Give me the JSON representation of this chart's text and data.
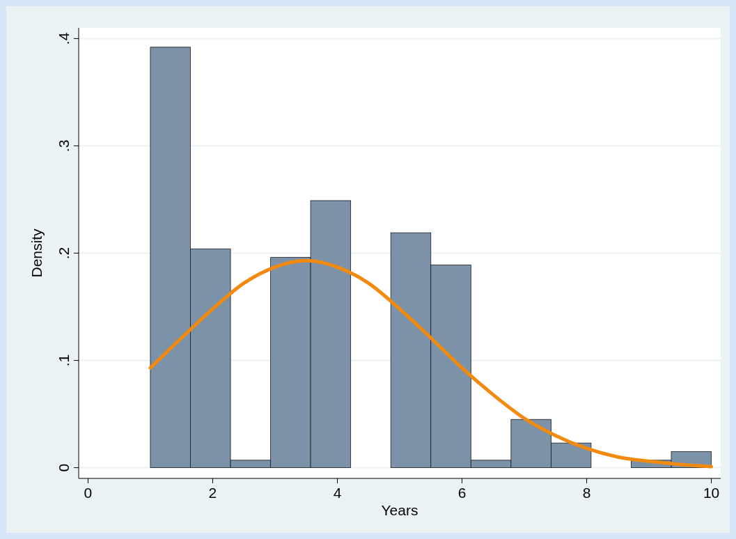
{
  "chart_data": {
    "type": "histogram",
    "xlabel": "Years",
    "ylabel": "Density",
    "bins": [
      1,
      1.643,
      2.286,
      2.929,
      3.571,
      4.214,
      4.857,
      5.5,
      6.143,
      6.786,
      7.429,
      8.071,
      8.714,
      9.357,
      10
    ],
    "values": [
      0.392,
      0.204,
      0.007,
      0.196,
      0.249,
      0,
      0.219,
      0.189,
      0.007,
      0.045,
      0.023,
      0,
      0.007,
      0.015
    ],
    "color": "#7b92a8",
    "series": [
      {
        "type": "line",
        "color": "#f28a0f",
        "x": [
          1,
          1.5,
          2,
          2.5,
          3,
          3.5,
          4,
          4.5,
          5,
          5.5,
          6,
          6.5,
          7,
          7.5,
          8,
          8.5,
          9,
          9.5,
          10
        ],
        "values": [
          0.093,
          0.121,
          0.148,
          0.172,
          0.187,
          0.193,
          0.187,
          0.172,
          0.148,
          0.121,
          0.093,
          0.068,
          0.046,
          0.03,
          0.018,
          0.01,
          0.006,
          0.003,
          0.001
        ]
      }
    ],
    "xlim": [
      -0.15,
      10.15
    ],
    "xticks": [
      0,
      2,
      4,
      6,
      8,
      10
    ],
    "ylim": [
      -0.01,
      0.41
    ],
    "yticks": [
      {
        "value": 0,
        "label": "0"
      },
      {
        "value": 0.1,
        "label": ".1"
      },
      {
        "value": 0.2,
        "label": ".2"
      },
      {
        "value": 0.3,
        "label": ".3"
      },
      {
        "value": 0.4,
        "label": ".4"
      }
    ],
    "grid": "y"
  }
}
